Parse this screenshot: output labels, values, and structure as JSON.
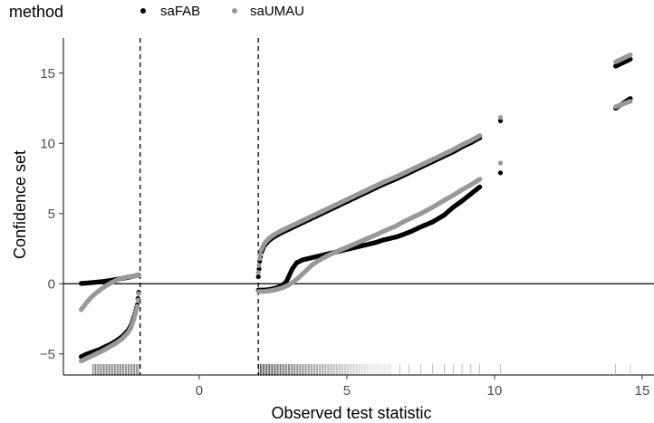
{
  "chart_data": {
    "type": "scatter",
    "xlabel": "Observed test statistic",
    "ylabel": "Confidence set",
    "xlim": [
      -4.6,
      15.4
    ],
    "ylim": [
      -6.5,
      17.5
    ],
    "x_ticks": [
      0,
      5,
      10,
      15
    ],
    "y_ticks": [
      -5,
      0,
      5,
      10,
      15
    ],
    "grid": false,
    "legend": {
      "title": "method",
      "position": "top-left",
      "entries": [
        {
          "label": "saFAB",
          "color": "#000000"
        },
        {
          "label": "saUMAU",
          "color": "#999999"
        }
      ]
    },
    "reference_lines": {
      "horizontal_solid": [
        0
      ],
      "vertical_dashed": [
        -2,
        2
      ]
    },
    "rug": {
      "description_ranges": [
        [
          -3.6,
          -2.05
        ],
        [
          2.02,
          6.5
        ]
      ],
      "sparse_x": [
        6.8,
        7.1,
        7.5,
        7.9,
        8.3,
        8.6,
        8.9,
        9.2,
        9.5,
        10.2,
        14.1,
        14.6
      ]
    },
    "series": [
      {
        "name": "saFAB",
        "color": "#000000",
        "upper": [
          [
            -4.0,
            0.02
          ],
          [
            -3.8,
            0.05
          ],
          [
            -3.6,
            0.09
          ],
          [
            -3.4,
            0.13
          ],
          [
            -3.2,
            0.18
          ],
          [
            -3.0,
            0.24
          ],
          [
            -2.8,
            0.31
          ],
          [
            -2.6,
            0.38
          ],
          [
            -2.4,
            0.46
          ],
          [
            -2.2,
            0.55
          ],
          [
            -2.05,
            0.62
          ],
          [
            2.0,
            0.5
          ],
          [
            2.05,
            1.6
          ],
          [
            2.1,
            2.2
          ],
          [
            2.2,
            2.7
          ],
          [
            2.35,
            3.05
          ],
          [
            2.5,
            3.3
          ],
          [
            2.75,
            3.6
          ],
          [
            3.0,
            3.85
          ],
          [
            3.3,
            4.15
          ],
          [
            3.6,
            4.45
          ],
          [
            4.0,
            4.85
          ],
          [
            4.5,
            5.35
          ],
          [
            5.0,
            5.85
          ],
          [
            5.5,
            6.35
          ],
          [
            6.0,
            6.85
          ],
          [
            6.2,
            7.05
          ],
          [
            6.7,
            7.5
          ],
          [
            6.9,
            7.7
          ],
          [
            7.2,
            8.0
          ],
          [
            7.5,
            8.3
          ],
          [
            7.9,
            8.7
          ],
          [
            8.3,
            9.1
          ],
          [
            8.6,
            9.4
          ],
          [
            8.9,
            9.75
          ],
          [
            9.2,
            10.05
          ],
          [
            9.5,
            10.4
          ],
          [
            10.2,
            11.6
          ],
          [
            14.1,
            15.5
          ],
          [
            14.6,
            16.0
          ]
        ],
        "lower": [
          [
            -4.0,
            -5.2
          ],
          [
            -3.8,
            -5.0
          ],
          [
            -3.6,
            -4.85
          ],
          [
            -3.4,
            -4.7
          ],
          [
            -3.2,
            -4.5
          ],
          [
            -3.0,
            -4.3
          ],
          [
            -2.8,
            -4.05
          ],
          [
            -2.6,
            -3.75
          ],
          [
            -2.4,
            -3.3
          ],
          [
            -2.3,
            -2.9
          ],
          [
            -2.2,
            -2.3
          ],
          [
            -2.1,
            -1.5
          ],
          [
            -2.05,
            -0.6
          ],
          [
            2.0,
            -0.45
          ],
          [
            2.2,
            -0.45
          ],
          [
            2.4,
            -0.4
          ],
          [
            2.6,
            -0.3
          ],
          [
            2.8,
            -0.15
          ],
          [
            2.95,
            0.15
          ],
          [
            3.05,
            0.6
          ],
          [
            3.15,
            1.05
          ],
          [
            3.3,
            1.5
          ],
          [
            3.5,
            1.7
          ],
          [
            3.8,
            1.85
          ],
          [
            4.2,
            2.05
          ],
          [
            4.6,
            2.25
          ],
          [
            5.0,
            2.45
          ],
          [
            5.5,
            2.7
          ],
          [
            6.0,
            2.95
          ],
          [
            6.2,
            3.1
          ],
          [
            6.7,
            3.35
          ],
          [
            6.9,
            3.5
          ],
          [
            7.2,
            3.75
          ],
          [
            7.5,
            4.05
          ],
          [
            7.9,
            4.4
          ],
          [
            8.3,
            4.9
          ],
          [
            8.6,
            5.45
          ],
          [
            8.9,
            5.9
          ],
          [
            9.2,
            6.4
          ],
          [
            9.5,
            6.9
          ],
          [
            10.2,
            7.9
          ],
          [
            14.1,
            12.5
          ],
          [
            14.6,
            13.2
          ]
        ]
      },
      {
        "name": "saUMAU",
        "color": "#999999",
        "upper": [
          [
            -4.0,
            -1.85
          ],
          [
            -3.8,
            -1.3
          ],
          [
            -3.6,
            -0.85
          ],
          [
            -3.4,
            -0.5
          ],
          [
            -3.2,
            -0.2
          ],
          [
            -3.0,
            0.05
          ],
          [
            -2.8,
            0.25
          ],
          [
            -2.6,
            0.4
          ],
          [
            -2.4,
            0.5
          ],
          [
            -2.2,
            0.55
          ],
          [
            -2.05,
            0.6
          ],
          [
            2.0,
            0.8
          ],
          [
            2.05,
            1.8
          ],
          [
            2.1,
            2.4
          ],
          [
            2.2,
            2.85
          ],
          [
            2.35,
            3.2
          ],
          [
            2.5,
            3.45
          ],
          [
            2.75,
            3.75
          ],
          [
            3.0,
            4.0
          ],
          [
            3.3,
            4.3
          ],
          [
            3.6,
            4.6
          ],
          [
            4.0,
            5.0
          ],
          [
            4.5,
            5.5
          ],
          [
            5.0,
            6.0
          ],
          [
            5.5,
            6.5
          ],
          [
            6.0,
            7.0
          ],
          [
            6.2,
            7.2
          ],
          [
            6.7,
            7.65
          ],
          [
            6.9,
            7.85
          ],
          [
            7.2,
            8.15
          ],
          [
            7.5,
            8.45
          ],
          [
            7.9,
            8.85
          ],
          [
            8.3,
            9.25
          ],
          [
            8.6,
            9.55
          ],
          [
            8.9,
            9.9
          ],
          [
            9.2,
            10.2
          ],
          [
            9.5,
            10.55
          ],
          [
            10.2,
            11.85
          ],
          [
            14.1,
            15.8
          ],
          [
            14.6,
            16.3
          ]
        ],
        "lower": [
          [
            -4.0,
            -5.5
          ],
          [
            -3.8,
            -5.3
          ],
          [
            -3.6,
            -5.1
          ],
          [
            -3.4,
            -4.9
          ],
          [
            -3.2,
            -4.7
          ],
          [
            -3.0,
            -4.45
          ],
          [
            -2.8,
            -4.2
          ],
          [
            -2.6,
            -3.9
          ],
          [
            -2.4,
            -3.45
          ],
          [
            -2.3,
            -3.05
          ],
          [
            -2.2,
            -2.45
          ],
          [
            -2.1,
            -1.6
          ],
          [
            -2.05,
            -0.7
          ],
          [
            2.0,
            -0.55
          ],
          [
            2.2,
            -0.55
          ],
          [
            2.4,
            -0.5
          ],
          [
            2.6,
            -0.42
          ],
          [
            2.8,
            -0.3
          ],
          [
            3.0,
            -0.12
          ],
          [
            3.2,
            0.15
          ],
          [
            3.4,
            0.5
          ],
          [
            3.6,
            0.9
          ],
          [
            3.8,
            1.3
          ],
          [
            4.0,
            1.6
          ],
          [
            4.3,
            1.95
          ],
          [
            4.6,
            2.25
          ],
          [
            5.0,
            2.6
          ],
          [
            5.5,
            3.05
          ],
          [
            6.0,
            3.5
          ],
          [
            6.2,
            3.7
          ],
          [
            6.7,
            4.15
          ],
          [
            6.9,
            4.4
          ],
          [
            7.2,
            4.7
          ],
          [
            7.5,
            5.0
          ],
          [
            7.9,
            5.45
          ],
          [
            8.3,
            5.95
          ],
          [
            8.6,
            6.3
          ],
          [
            8.9,
            6.7
          ],
          [
            9.2,
            7.05
          ],
          [
            9.5,
            7.45
          ],
          [
            10.2,
            8.6
          ],
          [
            14.1,
            12.6
          ],
          [
            14.6,
            13.0
          ]
        ]
      }
    ]
  }
}
